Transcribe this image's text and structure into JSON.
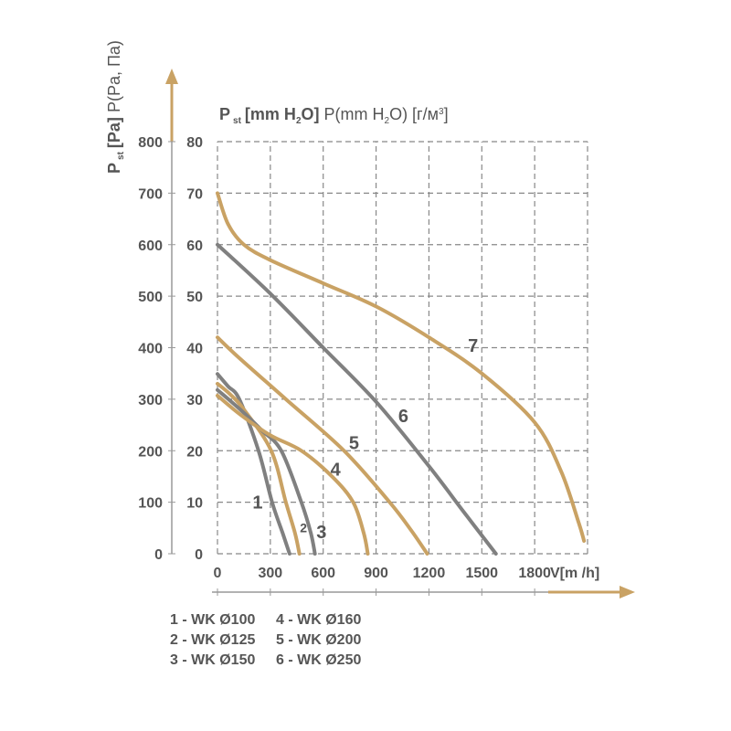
{
  "chart_data": {
    "type": "line",
    "title": "P st [mm H2O] P(mm H2O) [г/м3]",
    "title_parts": {
      "p": "P",
      "st": "st",
      "unit_bold_pre": "[mm H",
      "sub2": "2",
      "unit_bold_post": "O]",
      "rest_pre": " P(mm H",
      "rest_sub": "2",
      "rest_mid": "O) [г/м",
      "rest_sup": "3",
      "rest_post": "]"
    },
    "ylabel": "P st [Pa] P(Pa, Па)",
    "ylabel_parts": {
      "p": "P",
      "st": "st",
      "bold": "[Pa]",
      "rest": " P(Pa, Па)"
    },
    "xlabel": "V[m /h]",
    "xlim": [
      0,
      2100
    ],
    "ylim": [
      0,
      800
    ],
    "x_ticks": [
      "0",
      "300",
      "600",
      "900",
      "1200",
      "1500",
      "1800"
    ],
    "x_tick_values": [
      0,
      300,
      600,
      900,
      1200,
      1500,
      1800
    ],
    "y_ticks_pa": [
      "0",
      "100",
      "200",
      "300",
      "400",
      "500",
      "600",
      "700",
      "800"
    ],
    "y_ticks_mmh2o": [
      "0",
      "10",
      "20",
      "30",
      "40",
      "50",
      "60",
      "70",
      "80"
    ],
    "grid": true,
    "colors": {
      "gold": "#c9a264",
      "gray": "#808080",
      "text": "#555555",
      "grid": "#888888"
    },
    "series": [
      {
        "label": "1",
        "color": "#808080",
        "points": [
          [
            0,
            349
          ],
          [
            60,
            325
          ],
          [
            124,
            300
          ],
          [
            233,
            200
          ],
          [
            310,
            100
          ],
          [
            370,
            40
          ],
          [
            409,
            0
          ]
        ],
        "label_at": [
          228,
          88
        ]
      },
      {
        "label": "2",
        "color": "#c9a264",
        "points": [
          [
            0,
            330
          ],
          [
            70,
            310
          ],
          [
            150,
            280
          ],
          [
            305,
            200
          ],
          [
            388,
            100
          ],
          [
            440,
            40
          ],
          [
            465,
            0
          ]
        ],
        "label_at": [
          488,
          42
        ]
      },
      {
        "label": "3",
        "color": "#808080",
        "points": [
          [
            0,
            318
          ],
          [
            129,
            280
          ],
          [
            250,
            240
          ],
          [
            362,
            200
          ],
          [
            476,
            100
          ],
          [
            530,
            40
          ],
          [
            553,
            0
          ]
        ],
        "label_at": [
          590,
          30
        ]
      },
      {
        "label": "4",
        "color": "#c9a264",
        "points": [
          [
            0,
            307
          ],
          [
            130,
            270
          ],
          [
            300,
            230
          ],
          [
            476,
            200
          ],
          [
            650,
            150
          ],
          [
            770,
            100
          ],
          [
            830,
            40
          ],
          [
            853,
            0
          ]
        ],
        "label_at": [
          670,
          152
        ]
      },
      {
        "label": "5",
        "color": "#c9a264",
        "points": [
          [
            0,
            420
          ],
          [
            114,
            383
          ],
          [
            388,
            300
          ],
          [
            718,
            200
          ],
          [
            977,
            100
          ],
          [
            1100,
            45
          ],
          [
            1190,
            0
          ]
        ],
        "label_at": [
          775,
          203
        ]
      },
      {
        "label": "6",
        "color": "#808080",
        "points": [
          [
            0,
            600
          ],
          [
            300,
            505
          ],
          [
            600,
            400
          ],
          [
            900,
            295
          ],
          [
            1200,
            170
          ],
          [
            1400,
            80
          ],
          [
            1580,
            0
          ]
        ],
        "label_at": [
          1055,
          255
        ]
      },
      {
        "label": "7",
        "color": "#c9a264",
        "points": [
          [
            0,
            700
          ],
          [
            60,
            640
          ],
          [
            150,
            600
          ],
          [
            300,
            570
          ],
          [
            600,
            525
          ],
          [
            900,
            480
          ],
          [
            1200,
            420
          ],
          [
            1500,
            350
          ],
          [
            1800,
            255
          ],
          [
            1950,
            160
          ],
          [
            2050,
            60
          ],
          [
            2080,
            25
          ]
        ],
        "label_at": [
          1450,
          392
        ]
      }
    ],
    "legend": [
      "1 - WK Ø100",
      "4 - WK Ø160",
      "2 - WK Ø125",
      "5 - WK Ø200",
      "3 - WK Ø150",
      "6 - WK Ø250"
    ]
  }
}
